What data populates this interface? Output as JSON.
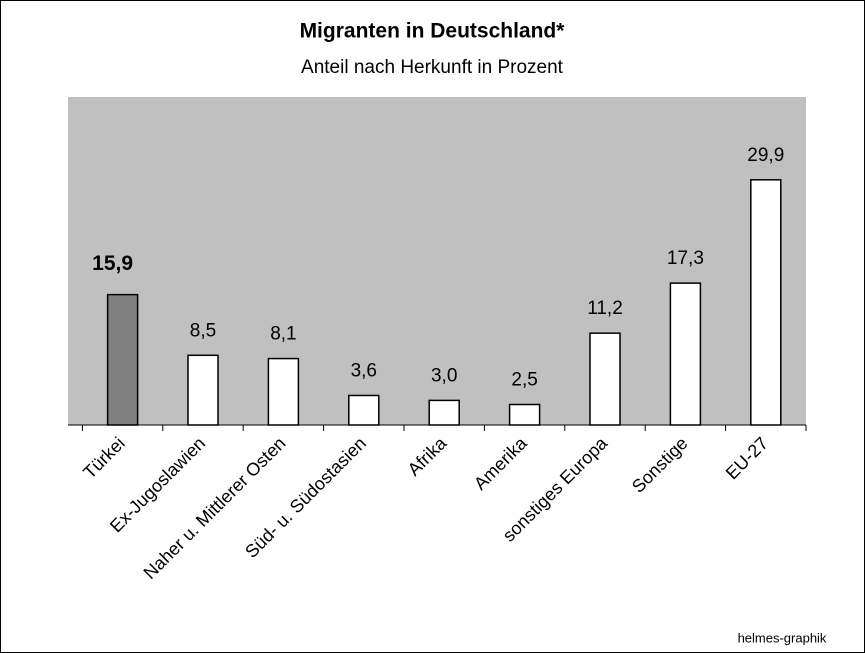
{
  "chart_data": {
    "type": "bar",
    "title": "Migranten in Deutschland*",
    "subtitle": "Anteil nach Herkunft in Prozent",
    "source": "helmes-graphik",
    "categories": [
      "Türkei",
      "Ex-Jugoslawien",
      "Naher u. Mittlerer Osten",
      "Süd- u. Südostasien",
      "Afrika",
      "Amerika",
      "sonstiges Europa",
      "Sonstige",
      "EU-27"
    ],
    "values": [
      15.9,
      8.5,
      8.1,
      3.6,
      3.0,
      2.5,
      11.2,
      17.3,
      29.9
    ],
    "value_labels": [
      "15,9",
      "8,5",
      "8,1",
      "3,6",
      "3,0",
      "2,5",
      "11,2",
      "17,3",
      "29,9"
    ],
    "colors": [
      "#808080",
      "#ffffff",
      "#ffffff",
      "#ffffff",
      "#ffffff",
      "#ffffff",
      "#ffffff",
      "#ffffff",
      "#ffffff"
    ],
    "highlight": 0,
    "background": "#c0c0c0",
    "ylim": [
      0,
      40
    ]
  }
}
